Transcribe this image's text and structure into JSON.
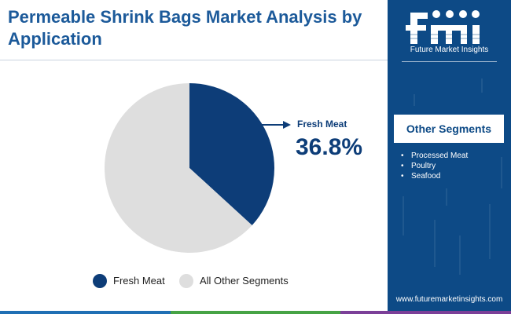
{
  "title": "Permeable Shrink Bags Market Analysis by Application",
  "brand": {
    "logo_text": "fmi",
    "name": "Future Market Insights",
    "website": "www.futuremarketinsights.com"
  },
  "colors": {
    "primary": "#0d3d78",
    "panel": "#0d4a86",
    "other": "#dedede",
    "title": "#1c5a9a",
    "footer": [
      "#1f6fb4",
      "#46a345",
      "#7b3f98"
    ]
  },
  "chart_data": {
    "type": "pie",
    "title": "",
    "series": [
      {
        "name": "Fresh Meat",
        "value": 36.8,
        "color": "#0d3d78"
      },
      {
        "name": "All Other Segments",
        "value": 63.2,
        "color": "#dedede"
      }
    ],
    "callout": {
      "label": "Fresh Meat",
      "value": "36.8%"
    },
    "legend_position": "bottom"
  },
  "side_panel": {
    "heading": "Other Segments",
    "items": [
      "Processed Meat",
      "Poultry",
      "Seafood"
    ]
  }
}
